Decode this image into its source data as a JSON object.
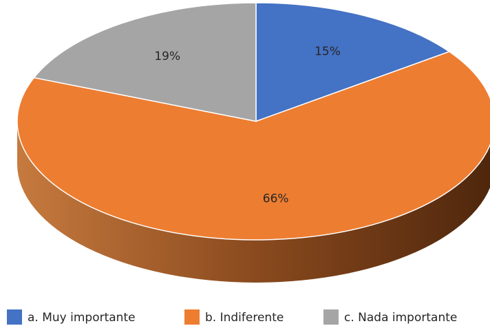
{
  "chart_data": {
    "type": "pie",
    "categories": [
      "a. Muy importante",
      "b. Indiferente",
      "c. Nada importante"
    ],
    "values": [
      15,
      66,
      19
    ],
    "value_labels": [
      "15%",
      "66%",
      "19%"
    ],
    "colors": [
      "#4472c4",
      "#ed7d31",
      "#a5a5a5"
    ],
    "legend": "bottom"
  }
}
